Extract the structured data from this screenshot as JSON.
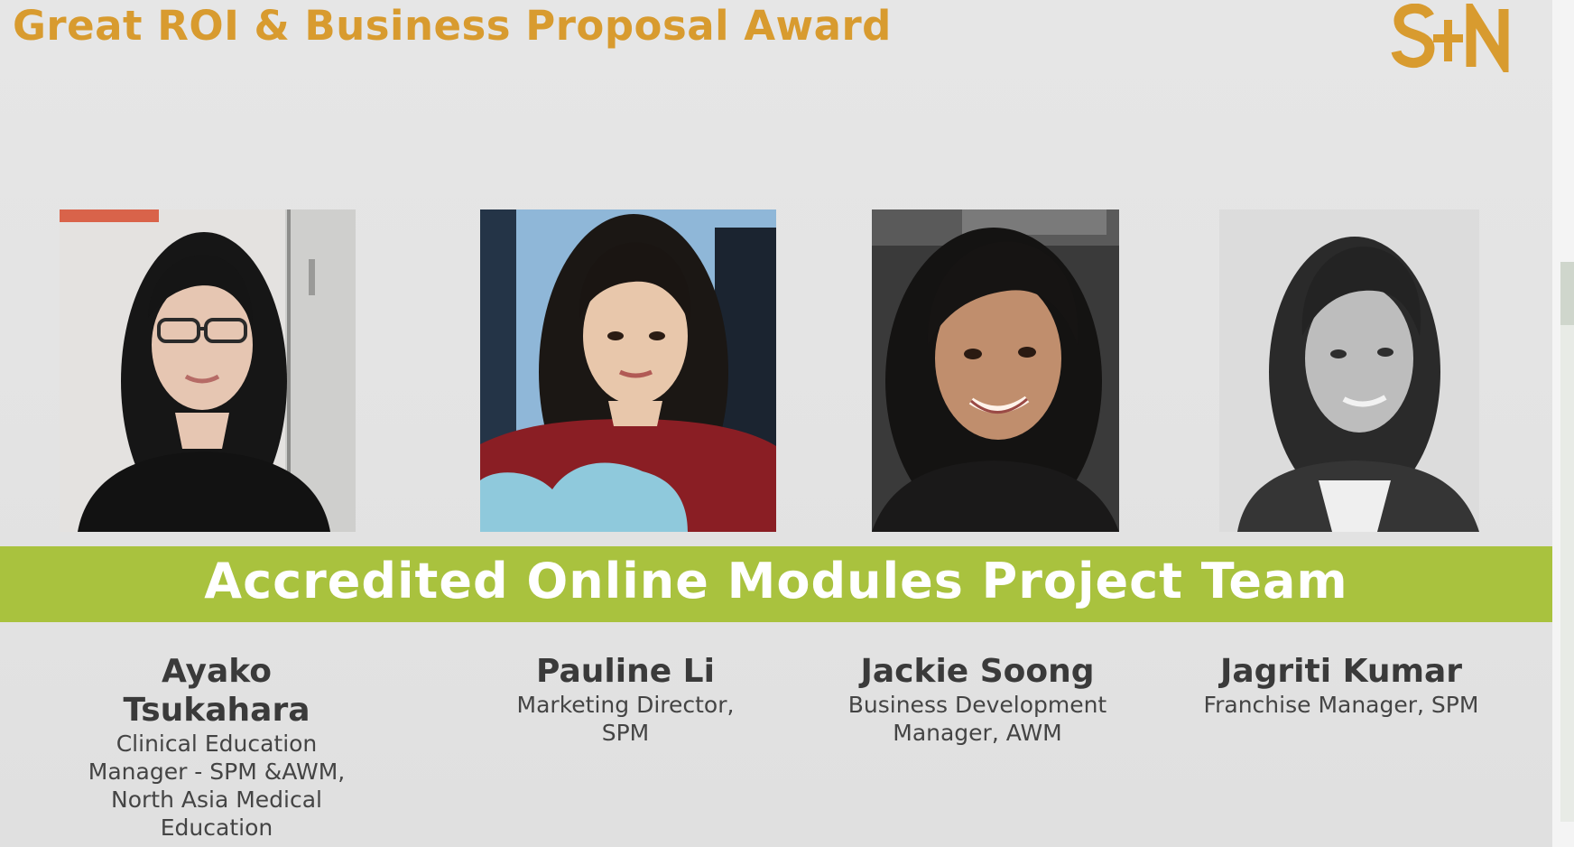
{
  "slide": {
    "title": "Great ROI & Business Proposal Award",
    "logo_text": "S+N",
    "banner": "Accredited Online Modules Project Team",
    "colors": {
      "title": "#d89b2f",
      "banner": "#a9c23e",
      "banner_text": "#ffffff",
      "background": "#e3e3e3"
    }
  },
  "team": [
    {
      "name_line1": "Ayako",
      "name_line2": "Tsukahara",
      "role_line1": "Clinical Education",
      "role_line2": "Manager - SPM &AWM,",
      "role_line3": "North Asia Medical",
      "role_line4": "Education",
      "photo": "portrait-photo"
    },
    {
      "name_line1": "Pauline Li",
      "role_line1": "Marketing Director,",
      "role_line2": "SPM",
      "photo": "portrait-photo"
    },
    {
      "name_line1": "Jackie Soong",
      "role_line1": "Business Development",
      "role_line2": "Manager, AWM",
      "photo": "portrait-photo"
    },
    {
      "name_line1": "Jagriti Kumar",
      "role_line1": "Franchise Manager, SPM",
      "photo": "portrait-photo-bw"
    }
  ]
}
